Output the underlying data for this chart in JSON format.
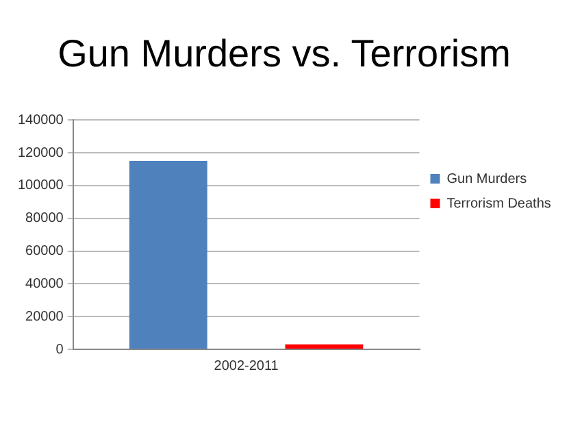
{
  "chart_data": {
    "type": "bar",
    "title": "Gun Murders vs. Terrorism",
    "categories": [
      "2002-2011"
    ],
    "series": [
      {
        "name": "Gun Murders",
        "color": "#4f81bd",
        "values": [
          115000
        ]
      },
      {
        "name": "Terrorism Deaths",
        "color": "#ff0000",
        "values": [
          3000
        ]
      }
    ],
    "ylim": [
      0,
      140000
    ],
    "yticks": [
      0,
      20000,
      40000,
      60000,
      80000,
      100000,
      120000,
      140000
    ],
    "grid": "y",
    "legend": "right"
  }
}
